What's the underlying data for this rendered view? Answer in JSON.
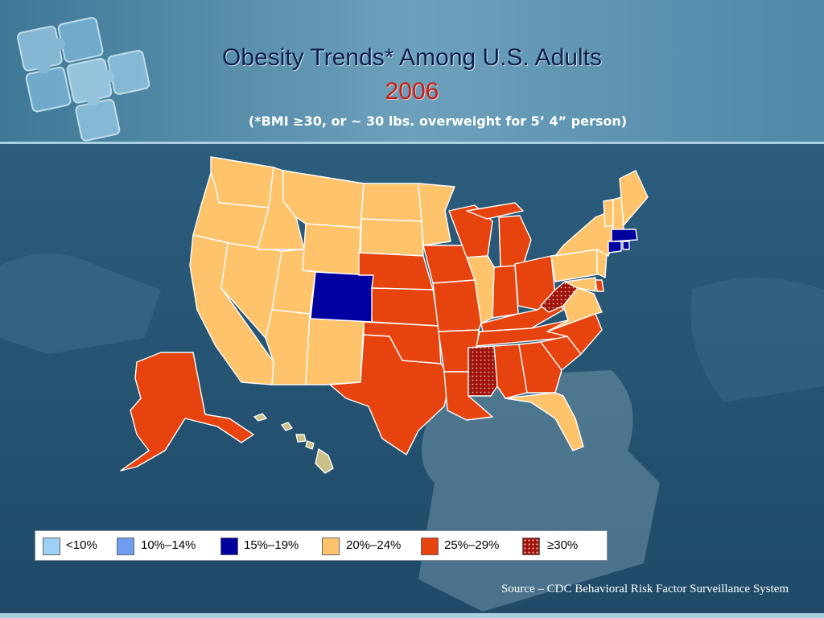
{
  "slide": {
    "title": "Obesity Trends* Among U.S. Adults",
    "year": "2006",
    "subtitle": "(*BMI ≥30, or ~ 30 lbs. overweight for 5’ 4” person)",
    "source": "Source – CDC Behavioral Risk Factor Surveillance System"
  },
  "legend": [
    {
      "label": "<10%",
      "color": "#9cd0f5"
    },
    {
      "label": "10%–14%",
      "color": "#6f9ef0"
    },
    {
      "label": "15%–19%",
      "color": "#0000a0"
    },
    {
      "label": "20%–24%",
      "color": "#fec36b"
    },
    {
      "label": "25%–29%",
      "color": "#e7430e"
    },
    {
      "label": "≥30%",
      "color": "#a0140c",
      "pattern": "dotted"
    }
  ],
  "map_data": {
    "categories": {
      "15-19": [
        "CO",
        "MA",
        "CT",
        "RI"
      ],
      "20-24": [
        "WA",
        "OR",
        "CA",
        "NV",
        "ID",
        "MT",
        "WY",
        "UT",
        "AZ",
        "NM",
        "ND",
        "SD",
        "MN",
        "IL",
        "FL",
        "VA",
        "MD",
        "NY",
        "PA",
        "NJ",
        "VT",
        "NH",
        "ME",
        "HI"
      ],
      "25-29": [
        "AK",
        "NE",
        "KS",
        "OK",
        "TX",
        "IA",
        "MO",
        "AR",
        "LA",
        "WI",
        "MI",
        "IN",
        "OH",
        "KY",
        "TN",
        "AL",
        "GA",
        "SC",
        "NC",
        "DE"
      ],
      "30+": [
        "MS",
        "WV"
      ]
    }
  }
}
